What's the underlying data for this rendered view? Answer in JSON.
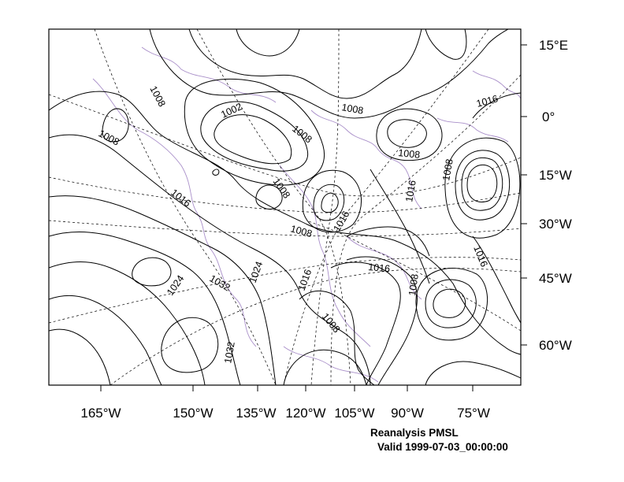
{
  "map": {
    "x_labels": [
      "165°W",
      "150°W",
      "135°W",
      "120°W",
      "105°W",
      "90°W",
      "75°W"
    ],
    "y_labels": [
      "15°E",
      "0°",
      "15°W",
      "30°W",
      "45°W",
      "60°W"
    ],
    "contour_labels": [
      "1008",
      "1008",
      "1002",
      "1008",
      "1008",
      "1008",
      "1008",
      "1016",
      "1008",
      "1016",
      "1008",
      "1016",
      "1016",
      "1016",
      "1024",
      "1032",
      "1024",
      "1016",
      "1008",
      "1016",
      "1008",
      "1032"
    ],
    "colors": {
      "contour": "#000000",
      "coastline": "#a98fc9",
      "grid": "#000000",
      "frame": "#000000"
    }
  },
  "caption": {
    "title": "Reanalysis PMSL",
    "valid": "Valid 1999-07-03_00:00:00"
  }
}
